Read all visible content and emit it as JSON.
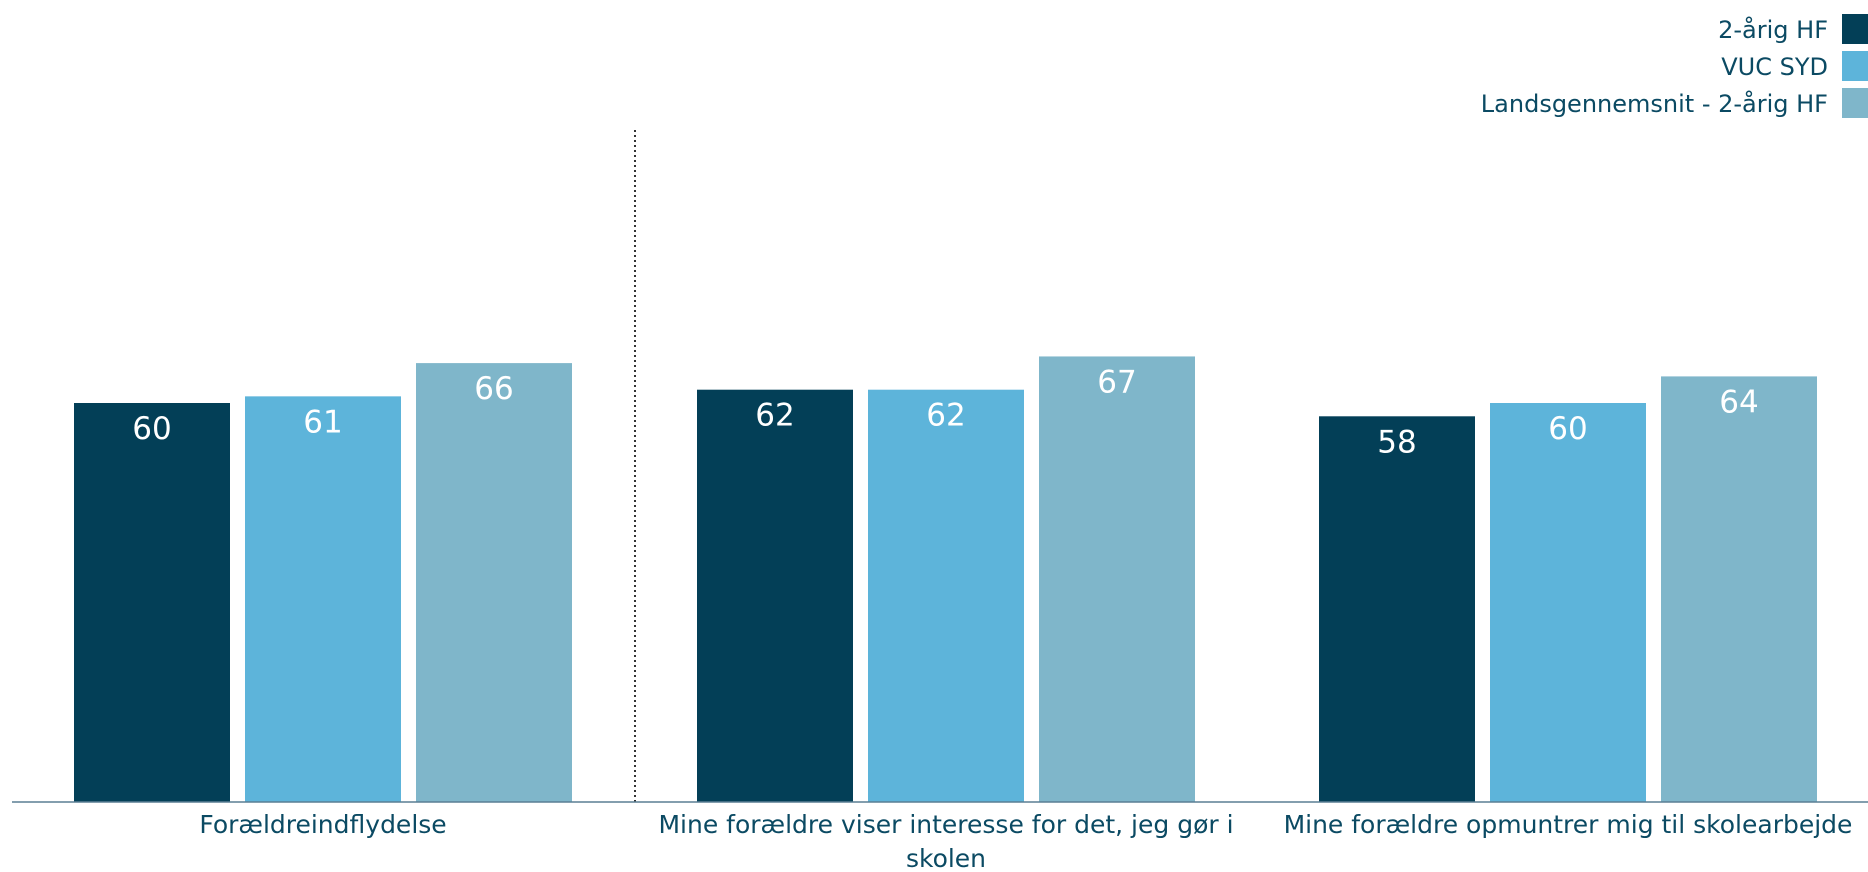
{
  "chart_data": {
    "type": "bar",
    "categories": [
      "Forældreindflydelse",
      "Mine forældre viser interesse for det, jeg gør i skolen",
      "Mine forældre opmuntrer mig til skolearbejde"
    ],
    "category_lines": [
      [
        "Forældreindflydelse"
      ],
      [
        "Mine forældre viser interesse for det, jeg gør i",
        "skolen"
      ],
      [
        "Mine forældre opmuntrer mig til skolearbejde"
      ]
    ],
    "series": [
      {
        "name": "2-årig HF",
        "color": "#033f57",
        "values": [
          60,
          62,
          58
        ]
      },
      {
        "name": "VUC SYD",
        "color": "#5db4da",
        "values": [
          61,
          62,
          60
        ]
      },
      {
        "name": "Landsgennemsnit - 2-årig HF",
        "color": "#7fb6ca",
        "values": [
          66,
          67,
          64
        ]
      }
    ],
    "ylim": [
      0,
      100
    ],
    "legend_position": "top-right",
    "grid": false,
    "separator_after_category": 0,
    "title": "",
    "xlabel": "",
    "ylabel": ""
  }
}
